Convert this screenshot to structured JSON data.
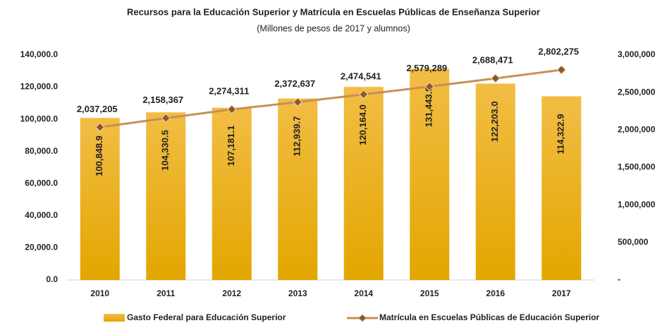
{
  "chart_data": {
    "type": "bar",
    "title": "Recursos para la Educación Superior y Matrícula en Escuelas Públicas de Enseñanza Superior",
    "subtitle": "(Millones de pesos de 2017 y alumnos)",
    "categories": [
      "2010",
      "2011",
      "2012",
      "2013",
      "2014",
      "2015",
      "2016",
      "2017"
    ],
    "series": [
      {
        "name": "Gasto Federal para Educación Superior",
        "color": "#e8ad12",
        "type": "bar",
        "values": [
          100848.9,
          104330.5,
          107181.1,
          112939.7,
          120164.0,
          131443.9,
          122203.0,
          114322.9
        ],
        "value_labels": [
          "100,848.9",
          "104,330.5",
          "107,181.1",
          "112,939.7",
          "120,164.0",
          "131,443.9",
          "122,203.0",
          "114,322.9"
        ]
      },
      {
        "name": "Matrícula en Escuelas Públicas de Educación Superior",
        "color": "#c98f55",
        "marker_color": "#8c5a2b",
        "type": "line",
        "axis": "y2",
        "values": [
          2037205,
          2158367,
          2274311,
          2372637,
          2474541,
          2579289,
          2688471,
          2802275
        ],
        "value_labels": [
          "2,037,205",
          "2,158,367",
          "2,274,311",
          "2,372,637",
          "2,474,541",
          "2,579,289",
          "2,688,471",
          "2,802,275"
        ]
      }
    ],
    "ylim": [
      0,
      140000
    ],
    "yticks": [
      {
        "value": 0,
        "label": "0.0"
      },
      {
        "value": 20000,
        "label": "20,000.0"
      },
      {
        "value": 40000,
        "label": "40,000.0"
      },
      {
        "value": 60000,
        "label": "60,000.0"
      },
      {
        "value": 80000,
        "label": "80,000.0"
      },
      {
        "value": 100000,
        "label": "100,000.0"
      },
      {
        "value": 120000,
        "label": "120,000.0"
      },
      {
        "value": 140000,
        "label": "140,000.0"
      }
    ],
    "y2lim": [
      0,
      3000000
    ],
    "y2ticks": [
      {
        "value": 0,
        "label": "-"
      },
      {
        "value": 500000,
        "label": "500,000"
      },
      {
        "value": 1000000,
        "label": "1,000,000"
      },
      {
        "value": 1500000,
        "label": "1,500,000"
      },
      {
        "value": 2000000,
        "label": "2,000,000"
      },
      {
        "value": 2500000,
        "label": "2,500,000"
      },
      {
        "value": 3000000,
        "label": "3,000,000"
      }
    ],
    "legend": "bottom"
  }
}
